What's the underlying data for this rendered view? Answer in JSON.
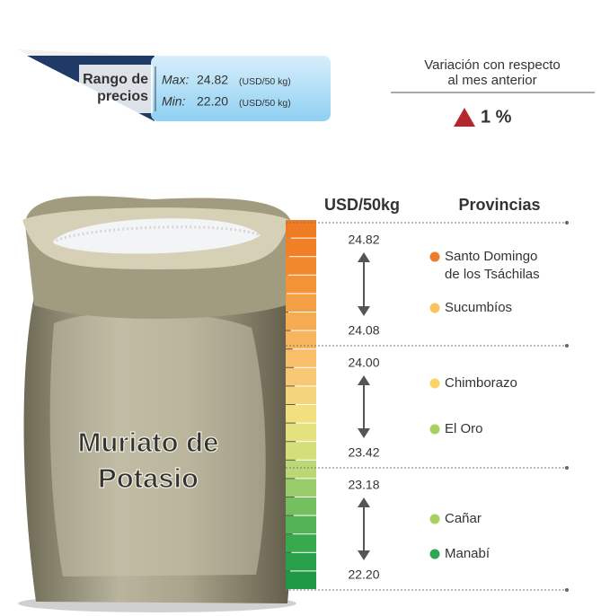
{
  "price_range": {
    "label_line1": "Rango de",
    "label_line2": "precios",
    "max_label": "Max:",
    "max_value": "24.82",
    "max_unit": "(USD/50 kg)",
    "min_label": "Min:",
    "min_value": "22.20",
    "min_unit": "(USD/50 kg)"
  },
  "variation": {
    "title_line1": "Variación con respecto",
    "title_line2": "al mes anterior",
    "value": "1 %"
  },
  "product": {
    "line1": "Muriato de",
    "line2": "Potasio"
  },
  "columns": {
    "price": "USD/50kg",
    "provinces": "Provincias"
  },
  "groups": [
    {
      "high": "24.82",
      "low": "24.08",
      "provinces": [
        {
          "name_line1": "Santo Domingo",
          "name_line2": "de los Tsáchilas",
          "color": "#ef7b2c"
        },
        {
          "name_line1": "Sucumbíos",
          "color": "#fbc35a"
        }
      ]
    },
    {
      "high": "24.00",
      "low": "23.42",
      "provinces": [
        {
          "name_line1": "Chimborazo",
          "color": "#fcd466"
        },
        {
          "name_line1": "El Oro",
          "color": "#a8d060"
        }
      ]
    },
    {
      "high": "23.18",
      "low": "22.20",
      "provinces": [
        {
          "name_line1": "Cañar",
          "color": "#a8d060"
        },
        {
          "name_line1": "Manabí",
          "color": "#2ea84f"
        }
      ]
    }
  ]
}
